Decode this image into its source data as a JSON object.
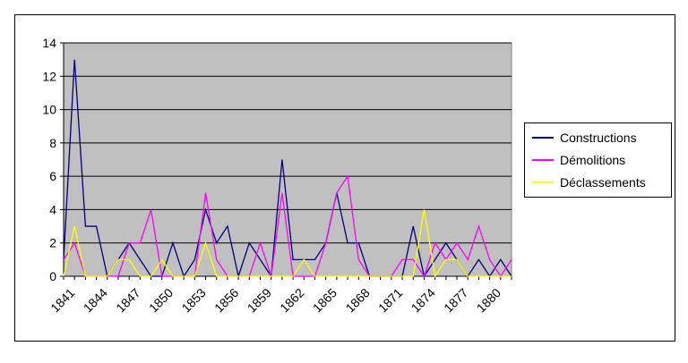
{
  "chart_data": {
    "type": "line",
    "x": [
      1841,
      1842,
      1843,
      1844,
      1845,
      1846,
      1847,
      1848,
      1849,
      1850,
      1851,
      1852,
      1853,
      1854,
      1855,
      1856,
      1857,
      1858,
      1859,
      1860,
      1861,
      1862,
      1863,
      1864,
      1865,
      1866,
      1867,
      1868,
      1869,
      1870,
      1871,
      1872,
      1873,
      1874,
      1875,
      1876,
      1877,
      1878,
      1879,
      1880,
      1881,
      1882
    ],
    "x_tick_labels": [
      "1841",
      "1844",
      "1847",
      "1850",
      "1853",
      "1856",
      "1859",
      "1862",
      "1865",
      "1868",
      "1871",
      "1874",
      "1877",
      "1880"
    ],
    "ylim": [
      0,
      14
    ],
    "y_ticks": [
      0,
      2,
      4,
      6,
      8,
      10,
      12,
      14
    ],
    "grid": "horizontal",
    "plot_background": "#c0c0c0",
    "legend_position": "right",
    "series": [
      {
        "name": "Constructions",
        "color": "#000080",
        "values": [
          1,
          13,
          3,
          3,
          0,
          1,
          2,
          1,
          0,
          0,
          2,
          0,
          1,
          4,
          2,
          3,
          0,
          2,
          1,
          0,
          7,
          1,
          1,
          1,
          2,
          5,
          2,
          2,
          0,
          0,
          0,
          0,
          3,
          0,
          1,
          2,
          1,
          0,
          1,
          0,
          1,
          0
        ]
      },
      {
        "name": "Démolitions",
        "color": "#ff00ff",
        "values": [
          1,
          2,
          0,
          0,
          0,
          0,
          2,
          2,
          4,
          0,
          0,
          0,
          0,
          5,
          1,
          0,
          0,
          0,
          2,
          0,
          5,
          0,
          0,
          0,
          2,
          5,
          6,
          1,
          0,
          0,
          0,
          1,
          1,
          0,
          2,
          1,
          2,
          1,
          3,
          1,
          0,
          1
        ]
      },
      {
        "name": "Déclassements",
        "color": "#ffff00",
        "values": [
          0,
          3,
          0,
          0,
          0,
          1,
          1,
          0,
          0,
          1,
          0,
          0,
          0,
          2,
          0,
          0,
          0,
          0,
          0,
          0,
          0,
          0,
          1,
          0,
          0,
          0,
          0,
          0,
          0,
          0,
          0,
          0,
          0,
          4,
          0,
          1,
          1,
          0,
          0,
          0,
          0,
          0
        ]
      }
    ]
  }
}
